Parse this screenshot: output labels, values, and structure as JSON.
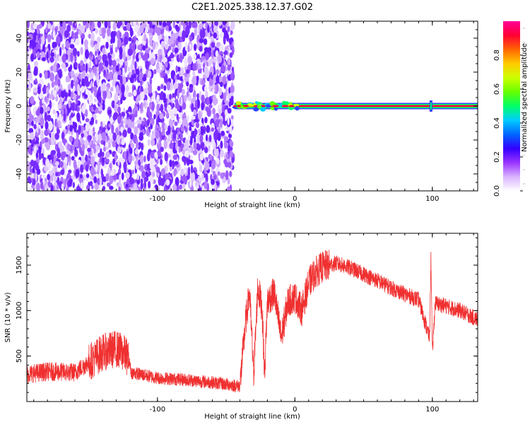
{
  "chart_data": [
    {
      "type": "heatmap",
      "title": "C2E1.2025.338.12.37.G02",
      "xlabel": "Height of straight line (km)",
      "ylabel": "Frequency (Hz)",
      "xlim": [
        -195,
        133
      ],
      "ylim": [
        -50,
        50
      ],
      "xticks": [
        -100,
        0,
        100
      ],
      "xtick_labels": [
        "-100",
        "0",
        "100"
      ],
      "yticks": [
        -40,
        -20,
        0,
        20,
        40
      ],
      "ytick_labels": [
        "-40",
        "-20",
        "0",
        "20",
        "40"
      ],
      "noise_region_x": [
        -195,
        -45
      ],
      "signal_line_frequency": 0,
      "colorbar": {
        "label": "Normalized spectral amplitude",
        "range": [
          0,
          1
        ],
        "ticks": [
          0.0,
          0.2,
          0.4,
          0.6,
          0.8
        ],
        "tick_labels": [
          "0.0",
          "0.2",
          "0.4",
          "0.6",
          "0.8"
        ],
        "colors": [
          "#ffffff",
          "#d9b3ff",
          "#9933ff",
          "#3300ff",
          "#0066ff",
          "#00ccff",
          "#00ff66",
          "#66ff00",
          "#ccff00",
          "#ffcc00",
          "#ff6600",
          "#ff0033",
          "#ff0099"
        ]
      }
    },
    {
      "type": "line",
      "xlabel": "Height of straight line (km)",
      "ylabel": "SNR (10 * v/v)",
      "xlim": [
        -195,
        133
      ],
      "ylim": [
        0,
        1850
      ],
      "xticks": [
        -100,
        0,
        100
      ],
      "xtick_labels": [
        "-100",
        "0",
        "100"
      ],
      "yticks": [
        500,
        1000,
        1500
      ],
      "ytick_labels": [
        "500",
        "1000",
        "1500"
      ],
      "color": "#f03030",
      "x": [
        -195,
        -180,
        -160,
        -150,
        -140,
        -130,
        -125,
        -121,
        -119,
        -100,
        -80,
        -60,
        -50,
        -40,
        -36,
        -33,
        -30,
        -27,
        -24,
        -22,
        -20,
        -15,
        -10,
        -5,
        0,
        5,
        10,
        15,
        20,
        25,
        30,
        40,
        50,
        60,
        70,
        80,
        90,
        98,
        99,
        100,
        102,
        110,
        120,
        133
      ],
      "y": [
        300,
        330,
        320,
        430,
        540,
        580,
        540,
        480,
        320,
        260,
        240,
        210,
        190,
        170,
        850,
        1200,
        300,
        1250,
        1050,
        300,
        1100,
        1200,
        700,
        1100,
        1150,
        1000,
        1300,
        1420,
        1480,
        1500,
        1520,
        1470,
        1400,
        1330,
        1250,
        1180,
        1120,
        700,
        1600,
        520,
        1080,
        1050,
        1000,
        900
      ]
    }
  ]
}
